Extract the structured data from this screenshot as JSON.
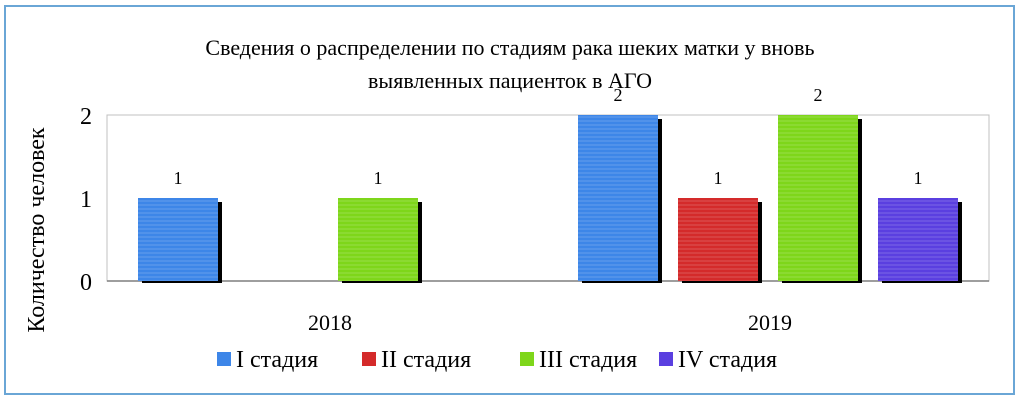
{
  "chart_data": {
    "type": "bar",
    "title_lines": [
      "Сведения о распределении по стадиям рака шеких матки у вновь",
      "выявленных пациенток в АГО"
    ],
    "ylabel": "Количество человек",
    "xlabel": "",
    "ylim": [
      0,
      2
    ],
    "yticks": [
      "0",
      "1",
      "2"
    ],
    "categories": [
      "2018",
      "2019"
    ],
    "series": [
      {
        "name": "I стадия",
        "color": "#3d86e8",
        "values": [
          1,
          2
        ]
      },
      {
        "name": "II стадия",
        "color": "#d42a2a",
        "values": [
          null,
          1
        ]
      },
      {
        "name": "III стадия",
        "color": "#7ed61a",
        "values": [
          1,
          2
        ]
      },
      {
        "name": "IV стадия",
        "color": "#5a3fe0",
        "values": [
          null,
          1
        ]
      }
    ],
    "data_labels": [
      [
        "1",
        "2"
      ],
      [
        "",
        "1"
      ],
      [
        "1",
        "2"
      ],
      [
        "",
        "1"
      ]
    ],
    "grid": false,
    "legend_position": "bottom"
  }
}
